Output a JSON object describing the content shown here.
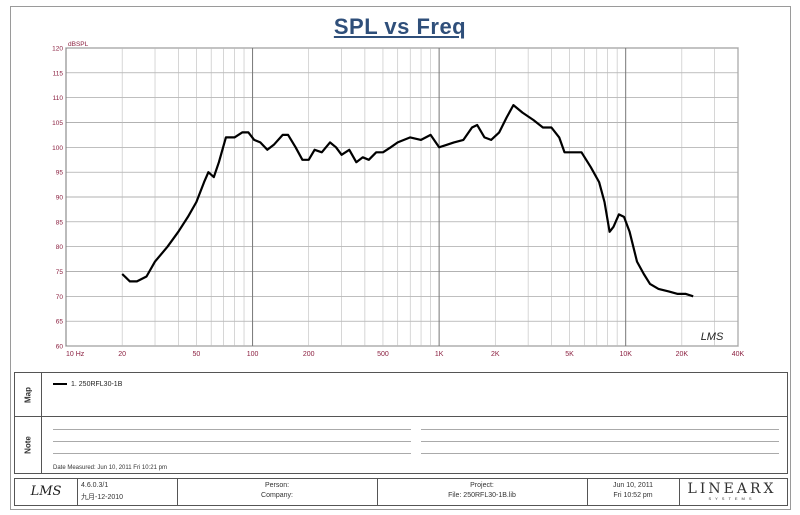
{
  "chart_data": {
    "type": "line",
    "title": "SPL vs Freq",
    "ylabel": "dBSPL",
    "xscale": "log",
    "xlim": [
      10,
      40000
    ],
    "ylim": [
      60,
      120
    ],
    "grid": true,
    "y_ticks": [
      "60",
      "65",
      "70",
      "75",
      "80",
      "85",
      "90",
      "95",
      "100",
      "105",
      "110",
      "115",
      "120"
    ],
    "x_ticks": [
      {
        "value": 10,
        "label": "10  Hz"
      },
      {
        "value": 20,
        "label": "20"
      },
      {
        "value": 50,
        "label": "50"
      },
      {
        "value": 100,
        "label": "100"
      },
      {
        "value": 200,
        "label": "200"
      },
      {
        "value": 500,
        "label": "500"
      },
      {
        "value": 1000,
        "label": "1K"
      },
      {
        "value": 2000,
        "label": "2K"
      },
      {
        "value": 5000,
        "label": "5K"
      },
      {
        "value": 10000,
        "label": "10K"
      },
      {
        "value": 20000,
        "label": "20K"
      },
      {
        "value": 40000,
        "label": "40K"
      }
    ],
    "series": [
      {
        "name": "1. 250RFL30-1B",
        "color": "#000000",
        "points": [
          [
            20,
            74.5
          ],
          [
            22,
            73
          ],
          [
            24,
            73
          ],
          [
            27,
            74
          ],
          [
            30,
            77
          ],
          [
            35,
            80
          ],
          [
            40,
            83
          ],
          [
            45,
            86
          ],
          [
            50,
            89
          ],
          [
            55,
            93
          ],
          [
            58,
            95
          ],
          [
            62,
            94
          ],
          [
            66,
            97
          ],
          [
            72,
            102
          ],
          [
            80,
            102
          ],
          [
            88,
            103
          ],
          [
            95,
            103
          ],
          [
            102,
            101.5
          ],
          [
            110,
            101
          ],
          [
            120,
            99.5
          ],
          [
            130,
            100.5
          ],
          [
            145,
            102.5
          ],
          [
            155,
            102.5
          ],
          [
            170,
            100
          ],
          [
            185,
            97.5
          ],
          [
            200,
            97.5
          ],
          [
            215,
            99.5
          ],
          [
            235,
            99
          ],
          [
            260,
            101
          ],
          [
            280,
            100
          ],
          [
            300,
            98.5
          ],
          [
            330,
            99.5
          ],
          [
            360,
            97
          ],
          [
            390,
            98
          ],
          [
            420,
            97.5
          ],
          [
            460,
            99
          ],
          [
            500,
            99
          ],
          [
            550,
            100
          ],
          [
            600,
            101
          ],
          [
            700,
            102
          ],
          [
            800,
            101.5
          ],
          [
            900,
            102.5
          ],
          [
            1000,
            100
          ],
          [
            1100,
            100.5
          ],
          [
            1200,
            101
          ],
          [
            1350,
            101.5
          ],
          [
            1500,
            104
          ],
          [
            1600,
            104.5
          ],
          [
            1750,
            102
          ],
          [
            1900,
            101.5
          ],
          [
            2100,
            103
          ],
          [
            2300,
            106
          ],
          [
            2500,
            108.5
          ],
          [
            2800,
            107
          ],
          [
            3200,
            105.5
          ],
          [
            3600,
            104
          ],
          [
            4000,
            104
          ],
          [
            4400,
            102
          ],
          [
            4700,
            99
          ],
          [
            5200,
            99
          ],
          [
            5800,
            99
          ],
          [
            6500,
            96
          ],
          [
            7200,
            93
          ],
          [
            7700,
            89
          ],
          [
            8200,
            83
          ],
          [
            8600,
            84
          ],
          [
            9200,
            86.5
          ],
          [
            9800,
            86
          ],
          [
            10500,
            83
          ],
          [
            11500,
            77
          ],
          [
            12500,
            74.5
          ],
          [
            13500,
            72.5
          ],
          [
            15000,
            71.5
          ],
          [
            17000,
            71
          ],
          [
            19000,
            70.5
          ],
          [
            21000,
            70.5
          ],
          [
            23000,
            70
          ]
        ]
      }
    ],
    "watermark": "LMS"
  },
  "legend_panel": {
    "label": "Map",
    "items": [
      "1. 250RFL30-1B"
    ]
  },
  "notes_panel": {
    "label": "Note",
    "date_measured": "Date Measured: Jun 10, 2011   Fri 10:21 pm"
  },
  "footer": {
    "lms_logo": "LMS",
    "version": "4.6.0.3/1",
    "version_date": "九月-12-2010",
    "person_label": "Person:",
    "company_label": "Company:",
    "project_label": "Project:",
    "file_label": "File: 250RFL30-1B.lib",
    "date": "Jun 10, 2011",
    "time": "Fri 10:52 pm",
    "brand": "LINEARX",
    "brand_sub": "SYSTEMS"
  }
}
